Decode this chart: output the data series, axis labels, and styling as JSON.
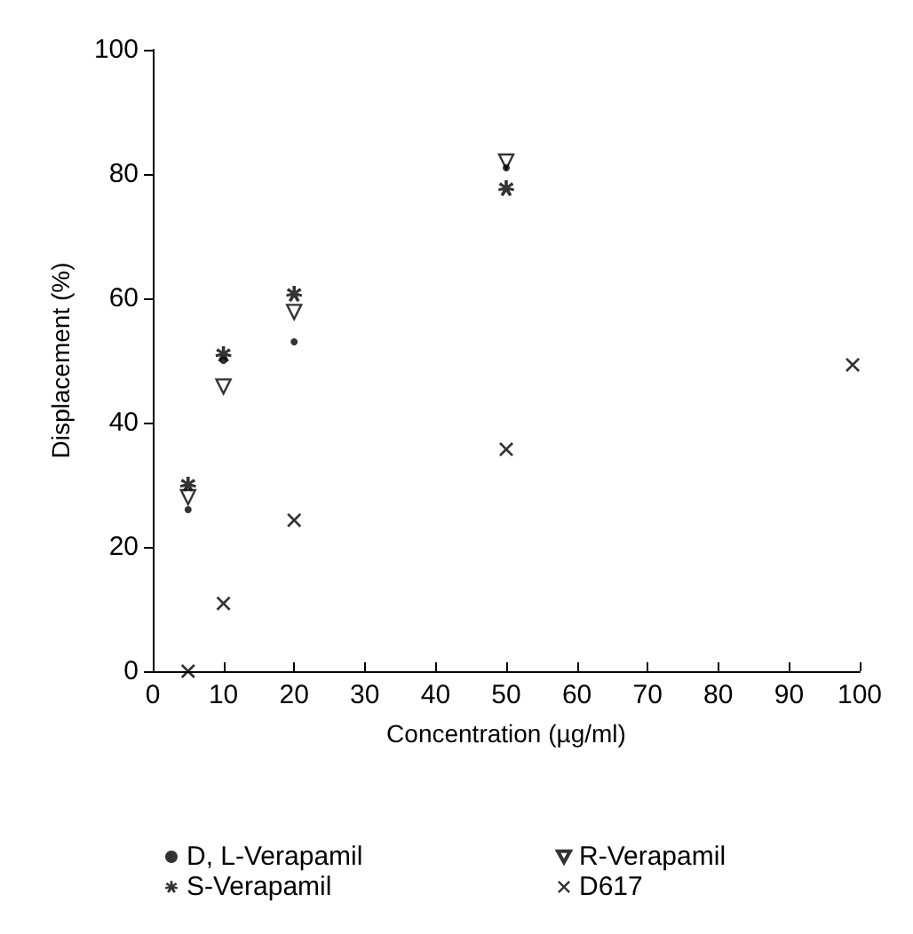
{
  "chart_data": {
    "type": "scatter",
    "xlabel": "Concentration (µg/ml)",
    "ylabel": "Displacement (%)",
    "xlim": [
      0,
      100
    ],
    "xticks": [
      0,
      10,
      20,
      30,
      40,
      50,
      60,
      70,
      80,
      90,
      100
    ],
    "ylim": [
      0,
      100
    ],
    "yticks": [
      0,
      20,
      40,
      60,
      80,
      100
    ],
    "grid": false,
    "legend": "bottom",
    "series": [
      {
        "name": "D, L-Verapamil",
        "color": "#000000",
        "marker": "circle",
        "x": [
          5,
          10,
          20,
          50
        ],
        "values": [
          26,
          50,
          53,
          81
        ]
      },
      {
        "name": "R-Verapamil",
        "color": "#000000",
        "marker": "triangle",
        "x": [
          5,
          10,
          20,
          50
        ],
        "values": [
          28,
          45.8,
          57.8,
          82
        ]
      },
      {
        "name": "S-Verapamil",
        "color": "#000000",
        "marker": "star",
        "x": [
          5,
          10,
          20,
          50
        ],
        "values": [
          30,
          51,
          60.7,
          77.7
        ]
      },
      {
        "name": "D617",
        "color": "#000000",
        "marker": "cross",
        "x": [
          5,
          10,
          20,
          50,
          99
        ],
        "values": [
          0,
          10.9,
          24.3,
          35.7,
          49.3
        ]
      }
    ]
  }
}
